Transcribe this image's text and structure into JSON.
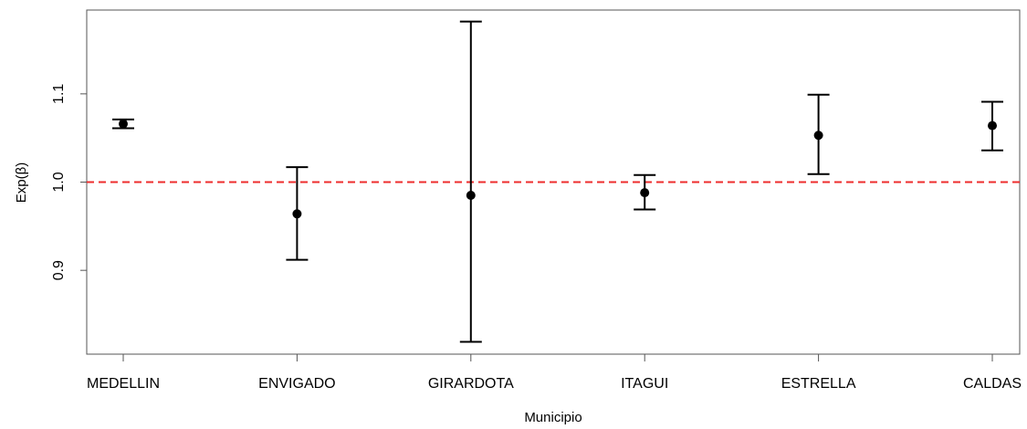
{
  "chart_data": {
    "type": "scatter",
    "subtype": "point-with-error-bars",
    "xlabel": "Municipio",
    "ylabel": "Exp(β)",
    "ylim": [
      0.805,
      1.195
    ],
    "y_ticks": [
      {
        "value": 0.9,
        "label": "0.9"
      },
      {
        "value": 1.0,
        "label": "1.0"
      },
      {
        "value": 1.1,
        "label": "1.1"
      }
    ],
    "categories": [
      "MEDELLIN",
      "ENVIGADO",
      "GIRARDOTA",
      "ITAGUI",
      "ESTRELLA",
      "CALDAS"
    ],
    "estimates": [
      1.066,
      0.964,
      0.985,
      0.988,
      1.053,
      1.064
    ],
    "lower": [
      1.061,
      0.912,
      0.819,
      0.969,
      1.009,
      1.036
    ],
    "upper": [
      1.071,
      1.017,
      1.182,
      1.008,
      1.099,
      1.091
    ],
    "reference_line": {
      "y": 1.0,
      "color": "#ee2c2c",
      "style": "dashed"
    },
    "grid": false,
    "legend": "none",
    "colors": {
      "points": "#000000",
      "error_bars": "#000000",
      "axes": "#555555"
    }
  }
}
